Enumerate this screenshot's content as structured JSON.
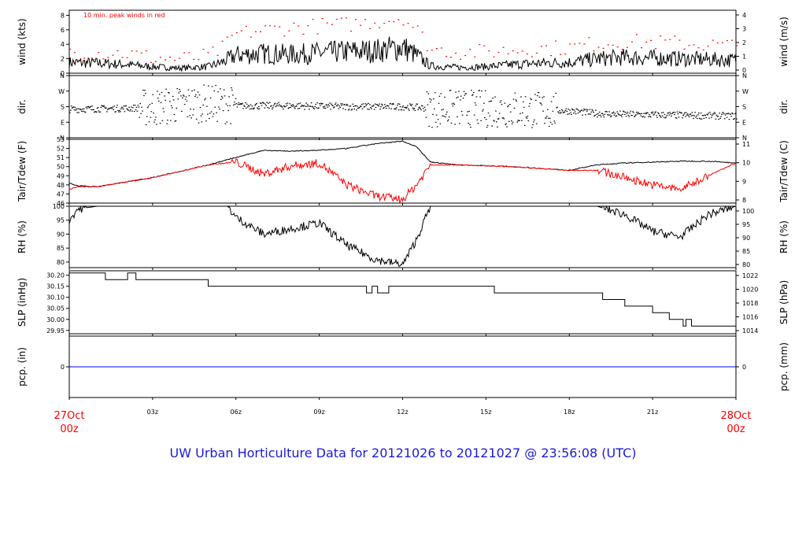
{
  "title": "UW Urban Horticulture Data for 20121026  to  20121027 @ 23:56:08  (UTC)",
  "colors": {
    "title": "#1a1adb",
    "peak": "#ff0000",
    "dewpoint": "#ff0000",
    "precip": "#0000ff",
    "trace": "#000000",
    "axis": "#000000"
  },
  "chart_data": [
    {
      "type": "line",
      "panel": "wind",
      "ylabel_left": "wind (kts)",
      "ylabel_right": "wind (m/s)",
      "annotation": "10 min. peak winds in red",
      "ylim": [
        0,
        8.7
      ],
      "yticks_left": [
        0,
        2,
        4,
        6,
        8
      ],
      "yticks_right": [
        "0",
        "1",
        "2",
        "3",
        "4"
      ],
      "series": [
        {
          "role": "sustained",
          "x": [
            0,
            1,
            2,
            3,
            4,
            5,
            5.5,
            6,
            7,
            8,
            9,
            10,
            11,
            12,
            12.5,
            13,
            14,
            15,
            16,
            17,
            18,
            19,
            20,
            21,
            22,
            23,
            24
          ],
          "values": [
            1.5,
            1.4,
            1.2,
            0.9,
            0.7,
            0.9,
            1.5,
            2.5,
            2.7,
            2.6,
            2.8,
            3.0,
            3.1,
            3.6,
            2.5,
            1.0,
            0.8,
            0.9,
            1.2,
            1.4,
            1.5,
            2.0,
            2.2,
            2.1,
            2.0,
            1.9,
            1.8
          ]
        },
        {
          "role": "peak",
          "x": [
            0,
            1,
            2,
            3,
            4,
            5,
            5.5,
            6,
            7,
            8,
            9,
            10,
            11,
            12,
            12.5,
            13,
            14,
            15,
            16,
            17,
            18,
            19,
            20,
            21,
            22,
            23,
            24
          ],
          "values": [
            3.0,
            2.9,
            2.8,
            2.2,
            2.0,
            2.4,
            3.5,
            5.5,
            6.0,
            6.4,
            6.6,
            6.8,
            7.2,
            7.8,
            6.0,
            3.4,
            3.0,
            3.0,
            3.3,
            3.5,
            3.6,
            4.2,
            4.4,
            4.3,
            4.2,
            4.0,
            3.8
          ]
        }
      ]
    },
    {
      "type": "scatter",
      "panel": "direction",
      "ylabel_left": "dir.",
      "ylabel_right": "dir.",
      "ylim": [
        0,
        4
      ],
      "yticks_left": [
        "N",
        "E",
        "S",
        "W",
        "N"
      ],
      "yticks_right": [
        "N",
        "E",
        "S",
        "W",
        "N"
      ],
      "series": [
        {
          "role": "direction_deg",
          "x": [
            0,
            2,
            3,
            4,
            5,
            6,
            8,
            10,
            12,
            13,
            14,
            16,
            18,
            19,
            20,
            22,
            24
          ],
          "values": [
            165,
            170,
            175,
            190,
            200,
            185,
            185,
            180,
            180,
            170,
            170,
            165,
            155,
            140,
            135,
            130,
            125
          ]
        }
      ]
    },
    {
      "type": "line",
      "panel": "temperature",
      "ylabel_left": "Tair/Tdew (F)",
      "ylabel_right": "Tair/Tdew (C)",
      "ylim": [
        46,
        53
      ],
      "yticks_left": [
        46,
        47,
        48,
        49,
        50,
        51,
        52,
        53
      ],
      "yticks_right": [
        "8",
        "9",
        "10",
        "11"
      ],
      "series": [
        {
          "role": "air_temperature",
          "x": [
            0,
            0.3,
            1,
            2,
            3,
            4,
            5,
            6,
            7,
            8,
            9,
            10,
            11,
            12,
            12.5,
            13,
            14,
            15,
            16,
            17,
            18,
            19,
            20,
            21,
            22,
            23,
            24
          ],
          "values": [
            48.2,
            47.9,
            47.8,
            48.3,
            48.8,
            49.5,
            50.2,
            51.0,
            51.8,
            51.7,
            51.8,
            52.0,
            52.5,
            52.8,
            52.2,
            50.5,
            50.2,
            50.1,
            50.0,
            49.8,
            49.6,
            50.2,
            50.4,
            50.5,
            50.6,
            50.6,
            50.4
          ]
        },
        {
          "role": "dew_point",
          "x": [
            0,
            0.3,
            1,
            2,
            3,
            4,
            5,
            6,
            7,
            8,
            9,
            10,
            11,
            12,
            12.5,
            13,
            14,
            15,
            16,
            17,
            18,
            19,
            20,
            21,
            22,
            23,
            24
          ],
          "values": [
            47.5,
            47.8,
            47.8,
            48.3,
            48.8,
            49.5,
            50.2,
            50.5,
            49.2,
            50.1,
            50.4,
            48.0,
            46.8,
            46.4,
            48.0,
            50.2,
            50.2,
            50.1,
            50.0,
            49.8,
            49.6,
            49.6,
            48.8,
            48.0,
            47.5,
            49.0,
            50.4
          ]
        }
      ]
    },
    {
      "type": "line",
      "panel": "humidity",
      "ylabel_left": "RH (%)",
      "ylabel_right": "RH (%)",
      "ylim": [
        78,
        100
      ],
      "yticks_left": [
        80,
        85,
        90,
        95,
        100
      ],
      "yticks_right": [
        "80",
        "85",
        "90",
        "95",
        "100"
      ],
      "series": [
        {
          "role": "relative_humidity",
          "x": [
            0,
            0.3,
            1,
            2,
            3,
            4,
            5,
            5.7,
            6,
            7,
            8,
            9,
            10,
            11,
            12,
            12.5,
            13,
            14,
            15,
            16,
            17,
            18,
            19,
            20,
            21,
            22,
            23,
            24
          ],
          "values": [
            95,
            99,
            100,
            100,
            100,
            100,
            100,
            100,
            96,
            90,
            92,
            94,
            86,
            81,
            79,
            88,
            100,
            100,
            100,
            100,
            100,
            100,
            100,
            97,
            91,
            89,
            97,
            100
          ]
        }
      ]
    },
    {
      "type": "line",
      "panel": "pressure",
      "ylabel_left": "SLP (inHg)",
      "ylabel_right": "SLP (hPa)",
      "ylim": [
        29.935,
        30.22
      ],
      "yticks_left": [
        "29.95",
        "30.00",
        "30.05",
        "30.10",
        "30.15",
        "30.20"
      ],
      "yticks_right": [
        "1014",
        "1016",
        "1018",
        "1020",
        "1022"
      ],
      "series": [
        {
          "role": "sea_level_pressure_inHg",
          "x": [
            0,
            1.3,
            2.1,
            2.4,
            5,
            10.7,
            10.9,
            11.1,
            11.5,
            11.7,
            15.3,
            19.2,
            20,
            21,
            21.6,
            22.1,
            22.2,
            22.4,
            24
          ],
          "values": [
            30.21,
            30.18,
            30.21,
            30.18,
            30.15,
            30.12,
            30.15,
            30.12,
            30.15,
            30.15,
            30.12,
            30.09,
            30.06,
            30.03,
            30.0,
            29.97,
            30.0,
            29.97,
            29.945
          ]
        }
      ]
    },
    {
      "type": "line",
      "panel": "precipitation",
      "ylabel_left": "pcp. (in)",
      "ylabel_right": "pcp. (mm)",
      "ylim": [
        -1,
        1
      ],
      "yticks_left": [
        "0"
      ],
      "yticks_right": [
        "0"
      ],
      "series": [
        {
          "role": "precipitation",
          "x": [
            0,
            24
          ],
          "values": [
            0,
            0
          ]
        }
      ]
    }
  ],
  "xaxis": {
    "xlim": [
      0,
      24
    ],
    "ticks": [
      {
        "x": 0,
        "line1": "27Oct",
        "line2": "00z",
        "highlight": true
      },
      {
        "x": 3,
        "line1": "03z",
        "line2": "",
        "highlight": false
      },
      {
        "x": 6,
        "line1": "06z",
        "line2": "",
        "highlight": false
      },
      {
        "x": 9,
        "line1": "09z",
        "line2": "",
        "highlight": false
      },
      {
        "x": 12,
        "line1": "12z",
        "line2": "",
        "highlight": false
      },
      {
        "x": 15,
        "line1": "15z",
        "line2": "",
        "highlight": false
      },
      {
        "x": 18,
        "line1": "18z",
        "line2": "",
        "highlight": false
      },
      {
        "x": 21,
        "line1": "21z",
        "line2": "",
        "highlight": false
      },
      {
        "x": 24,
        "line1": "28Oct",
        "line2": "00z",
        "highlight": true
      }
    ]
  }
}
